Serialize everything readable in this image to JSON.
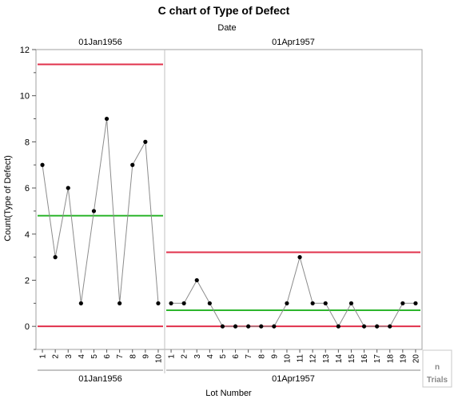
{
  "chart_data": {
    "type": "line",
    "title": "C chart of Type of Defect",
    "subtitle": "Date",
    "ylabel": "Count(Type of Defect)",
    "xlabel": "Lot Number",
    "ylim": [
      -1,
      12
    ],
    "yticks": [
      0,
      2,
      4,
      6,
      8,
      10,
      12
    ],
    "grid": false,
    "phases": [
      {
        "label": "01Jan1956",
        "lots": [
          "1",
          "2",
          "3",
          "4",
          "5",
          "6",
          "7",
          "8",
          "9",
          "10"
        ],
        "values": [
          7,
          3,
          6,
          1,
          5,
          9,
          1,
          7,
          8,
          1
        ],
        "ucl": 11.36,
        "center": 4.8,
        "lcl": 0
      },
      {
        "label": "01Apr1957",
        "lots": [
          "1",
          "2",
          "3",
          "4",
          "5",
          "6",
          "7",
          "8",
          "9",
          "10",
          "11",
          "12",
          "13",
          "14",
          "15",
          "16",
          "17",
          "18",
          "19",
          "20"
        ],
        "values": [
          1,
          1,
          2,
          1,
          0,
          0,
          0,
          0,
          0,
          1,
          3,
          1,
          1,
          0,
          1,
          0,
          0,
          0,
          1,
          1
        ],
        "ucl": 3.21,
        "center": 0.7,
        "lcl": 0
      }
    ],
    "colors": {
      "limit": "#e0314b",
      "center": "#2db52d",
      "line": "#8c8c8c",
      "point": "#000000"
    }
  },
  "trials_button": {
    "line1": "n",
    "line2": "Trials"
  }
}
